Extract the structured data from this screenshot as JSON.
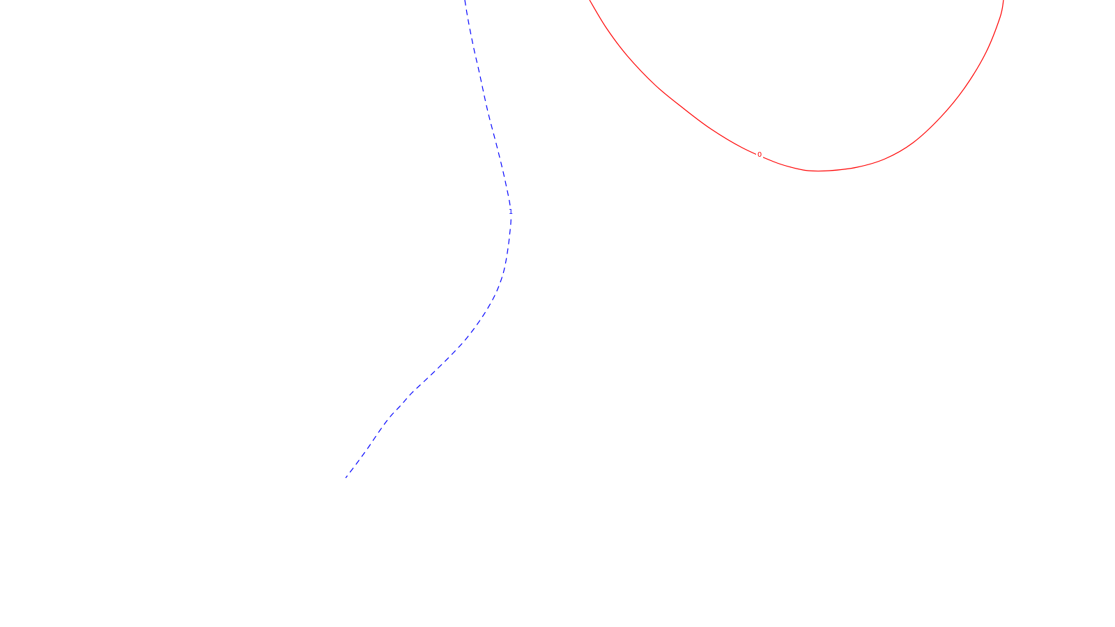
{
  "chart_data": {
    "type": "contour",
    "series": [
      {
        "level": "0",
        "color": "#ff0000",
        "dash": "solid",
        "points": [
          [
            846,
            0
          ],
          [
            870,
            40
          ],
          [
            900,
            80
          ],
          [
            940,
            122
          ],
          [
            980,
            155
          ],
          [
            1020,
            185
          ],
          [
            1065,
            212
          ],
          [
            1110,
            232
          ],
          [
            1135,
            240
          ],
          [
            1160,
            245
          ],
          [
            1190,
            245
          ],
          [
            1230,
            240
          ],
          [
            1270,
            228
          ],
          [
            1310,
            205
          ],
          [
            1350,
            168
          ],
          [
            1385,
            125
          ],
          [
            1415,
            75
          ],
          [
            1435,
            25
          ],
          [
            1440,
            0
          ]
        ],
        "label_at": [
          1090,
          222
        ]
      },
      {
        "level": "1",
        "color": "#0000ff",
        "dash": "dashed",
        "points": [
          [
            667,
            0
          ],
          [
            672,
            30
          ],
          [
            680,
            70
          ],
          [
            688,
            105
          ],
          [
            700,
            160
          ],
          [
            713,
            210
          ],
          [
            725,
            260
          ],
          [
            733,
            304
          ],
          [
            731,
            340
          ],
          [
            725,
            380
          ],
          [
            718,
            405
          ],
          [
            707,
            430
          ],
          [
            690,
            458
          ],
          [
            670,
            485
          ],
          [
            650,
            507
          ],
          [
            630,
            527
          ],
          [
            608,
            548
          ],
          [
            590,
            565
          ],
          [
            575,
            582
          ],
          [
            560,
            598
          ],
          [
            545,
            618
          ],
          [
            528,
            643
          ],
          [
            512,
            665
          ],
          [
            496,
            686
          ]
        ],
        "label_at": [
          733,
          304
        ]
      }
    ]
  }
}
